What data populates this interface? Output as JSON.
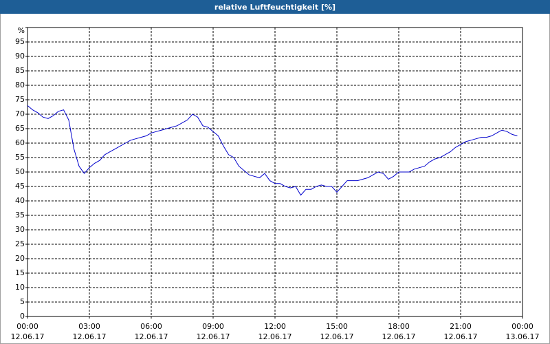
{
  "chart_data": {
    "type": "line",
    "title": "relative Luftfeuchtigkeit [%]",
    "x": [
      0,
      0.25,
      0.5,
      0.75,
      1,
      1.25,
      1.5,
      1.75,
      2,
      2.25,
      2.5,
      2.75,
      3,
      3.25,
      3.5,
      3.75,
      4,
      4.25,
      4.5,
      4.75,
      5,
      5.25,
      5.5,
      5.75,
      6,
      6.25,
      6.5,
      6.75,
      7,
      7.25,
      7.5,
      7.75,
      8,
      8.25,
      8.5,
      8.75,
      9,
      9.25,
      9.5,
      9.75,
      10,
      10.25,
      10.5,
      10.75,
      11,
      11.25,
      11.5,
      11.75,
      12,
      12.25,
      12.5,
      12.75,
      13,
      13.25,
      13.5,
      13.75,
      14,
      14.25,
      14.5,
      14.75,
      15,
      15.25,
      15.5,
      15.75,
      16,
      16.25,
      16.5,
      16.75,
      17,
      17.25,
      17.5,
      17.75,
      18,
      18.25,
      18.5,
      18.75,
      19,
      19.25,
      19.5,
      19.75,
      20,
      20.25,
      20.5,
      20.75,
      21,
      21.25,
      21.5,
      21.75,
      22,
      22.25,
      22.5,
      22.75,
      23,
      23.25,
      23.5,
      23.75
    ],
    "series": [
      {
        "name": "relative Luftfeuchtigkeit",
        "color": "#0000cc",
        "values": [
          73,
          71.5,
          70.5,
          69,
          68.5,
          69.5,
          71,
          71.5,
          68,
          58,
          52,
          49.5,
          51.5,
          53,
          54,
          56,
          57,
          58,
          59,
          60,
          61,
          61.5,
          62,
          62.5,
          63.5,
          64,
          64.5,
          65,
          65.5,
          66,
          67,
          68,
          70,
          69,
          66,
          65.5,
          64,
          62.5,
          59,
          56,
          55,
          52,
          50.5,
          49,
          48.5,
          48,
          49.5,
          47,
          46,
          46,
          45,
          44.5,
          45,
          42,
          44,
          44,
          45,
          45.5,
          45,
          45,
          43,
          45,
          47,
          47,
          47,
          47.5,
          48,
          49,
          50,
          49.5,
          47.5,
          48.5,
          50,
          50,
          50,
          51,
          51.5,
          52,
          53.5,
          54.5,
          55,
          56,
          57,
          58.5,
          59.5,
          60.5,
          61,
          61.5,
          62,
          62,
          62.5,
          63.5,
          64.5,
          64,
          63,
          62.5
        ]
      }
    ],
    "xlim": [
      0,
      24
    ],
    "ylim": [
      0,
      100
    ],
    "xticks": [
      {
        "value": 0,
        "label": "00:00"
      },
      {
        "value": 3,
        "label": "03:00"
      },
      {
        "value": 6,
        "label": "06:00"
      },
      {
        "value": 9,
        "label": "09:00"
      },
      {
        "value": 12,
        "label": "12:00"
      },
      {
        "value": 15,
        "label": "15:00"
      },
      {
        "value": 18,
        "label": "18:00"
      },
      {
        "value": 21,
        "label": "21:00"
      },
      {
        "value": 24,
        "label": "00:00"
      }
    ],
    "xtick_dates": [
      "12.06.17",
      "12.06.17",
      "12.06.17",
      "12.06.17",
      "12.06.17",
      "12.06.17",
      "12.06.17",
      "12.06.17",
      "13.06.17"
    ],
    "yticks": [
      0,
      5,
      10,
      15,
      20,
      25,
      30,
      35,
      40,
      45,
      50,
      55,
      60,
      65,
      70,
      75,
      80,
      85,
      90,
      95,
      {
        "value": 100,
        "label": "%"
      }
    ],
    "grid": true
  }
}
